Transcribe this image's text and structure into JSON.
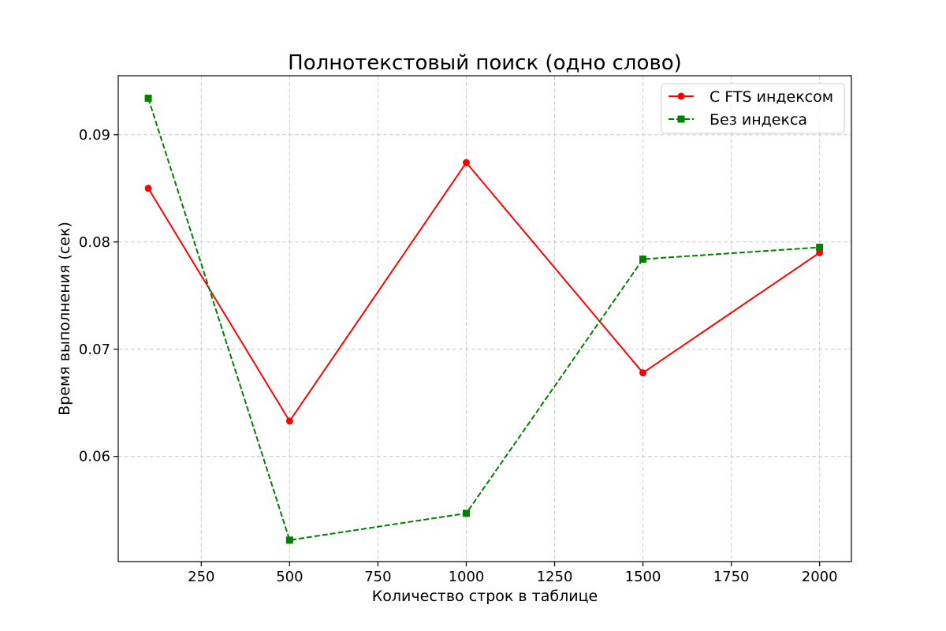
{
  "chart_data": {
    "type": "line",
    "title": "Полнотекстовый поиск (одно слово)",
    "xlabel": "Количество строк в таблице",
    "ylabel": "Время выполнения (сек)",
    "x": [
      100,
      500,
      1000,
      1500,
      2000
    ],
    "xlim": [
      15,
      2090
    ],
    "ylim": [
      0.0502,
      0.0955
    ],
    "x_ticks": [
      250,
      500,
      750,
      1000,
      1250,
      1500,
      1750,
      2000
    ],
    "y_ticks": [
      0.06,
      0.07,
      0.08,
      0.09
    ],
    "x_tick_labels": [
      "250",
      "500",
      "750",
      "1000",
      "1250",
      "1500",
      "1750",
      "2000"
    ],
    "y_tick_labels": [
      "0.06",
      "0.07",
      "0.08",
      "0.09"
    ],
    "grid": true,
    "legend_position": "top-right",
    "series": [
      {
        "name": "С FTS индексом",
        "values": [
          0.085,
          0.0633,
          0.0874,
          0.0678,
          0.079
        ],
        "color": "#ff0000",
        "line_style": "solid",
        "marker": "circle"
      },
      {
        "name": "Без индекса",
        "values": [
          0.0934,
          0.0522,
          0.0547,
          0.0784,
          0.0795
        ],
        "color": "#008000",
        "line_style": "dashed",
        "marker": "square"
      }
    ]
  }
}
